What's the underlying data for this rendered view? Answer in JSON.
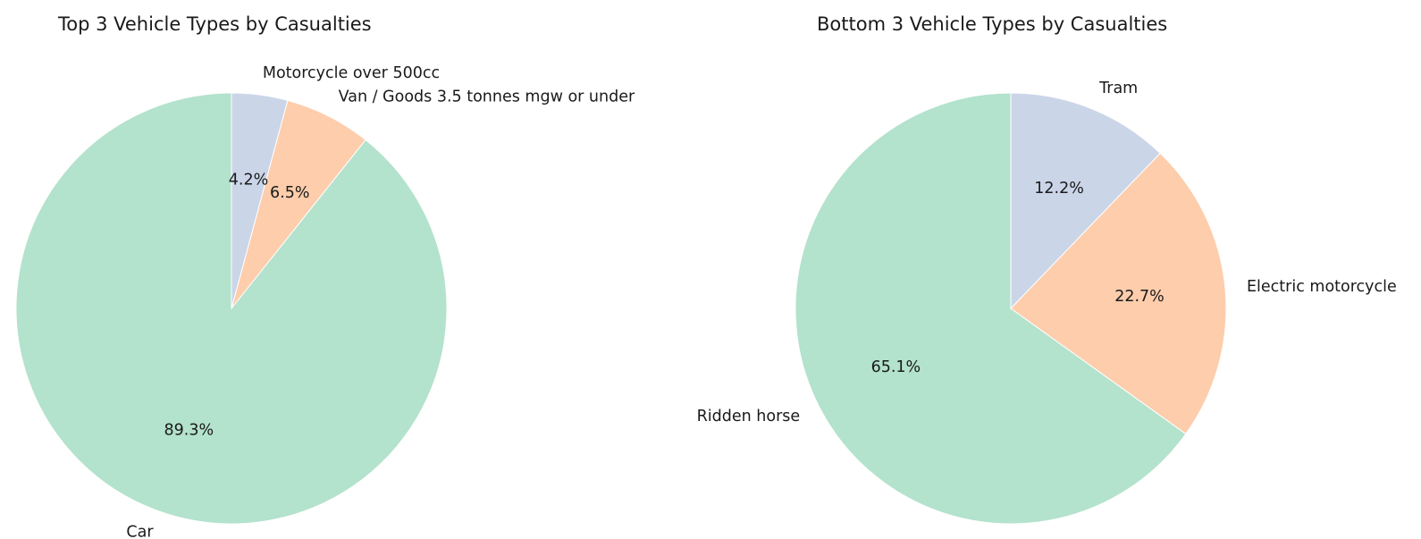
{
  "chart_data": [
    {
      "type": "pie",
      "title": "Top 3 Vehicle Types by Casualties",
      "slices": [
        {
          "label": "Car",
          "value": 89.3,
          "pct_label": "89.3%",
          "color": "#b3e2cd"
        },
        {
          "label": "Van / Goods 3.5 tonnes mgw or under",
          "value": 6.5,
          "pct_label": "6.5%",
          "color": "#fdcdac"
        },
        {
          "label": "Motorcycle over 500cc",
          "value": 4.2,
          "pct_label": "4.2%",
          "color": "#cbd5e8"
        }
      ],
      "start_angle": 90,
      "direction": "counterclockwise"
    },
    {
      "type": "pie",
      "title": "Bottom 3 Vehicle Types by Casualties",
      "slices": [
        {
          "label": "Ridden horse",
          "value": 65.1,
          "pct_label": "65.1%",
          "color": "#b3e2cd"
        },
        {
          "label": "Electric motorcycle",
          "value": 22.7,
          "pct_label": "22.7%",
          "color": "#fdcdac"
        },
        {
          "label": "Tram",
          "value": 12.2,
          "pct_label": "12.2%",
          "color": "#cbd5e8"
        }
      ],
      "start_angle": 90,
      "direction": "counterclockwise"
    }
  ]
}
